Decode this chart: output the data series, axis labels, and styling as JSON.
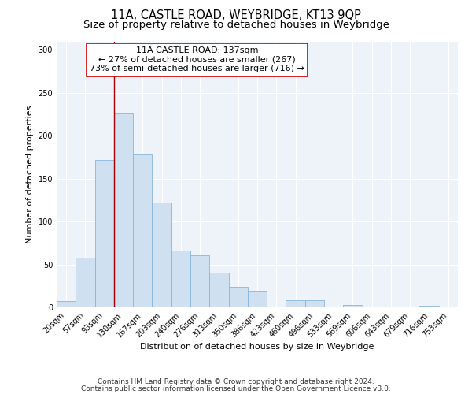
{
  "title": "11A, CASTLE ROAD, WEYBRIDGE, KT13 9QP",
  "subtitle": "Size of property relative to detached houses in Weybridge",
  "xlabel": "Distribution of detached houses by size in Weybridge",
  "ylabel": "Number of detached properties",
  "bar_labels": [
    "20sqm",
    "57sqm",
    "93sqm",
    "130sqm",
    "167sqm",
    "203sqm",
    "240sqm",
    "276sqm",
    "313sqm",
    "350sqm",
    "386sqm",
    "423sqm",
    "460sqm",
    "496sqm",
    "533sqm",
    "569sqm",
    "606sqm",
    "643sqm",
    "679sqm",
    "716sqm",
    "753sqm"
  ],
  "bar_values": [
    7,
    58,
    172,
    226,
    178,
    122,
    66,
    61,
    40,
    24,
    19,
    0,
    8,
    8,
    0,
    3,
    0,
    0,
    0,
    2,
    1
  ],
  "bar_color": "#cfe0f0",
  "bar_edge_color": "#8ab4d8",
  "bar_width": 1.0,
  "vline_x": 3.0,
  "vline_color": "#aa0000",
  "ylim": [
    0,
    310
  ],
  "yticks": [
    0,
    50,
    100,
    150,
    200,
    250,
    300
  ],
  "annotation_text_line1": "11A CASTLE ROAD: 137sqm",
  "annotation_text_line2": "← 27% of detached houses are smaller (267)",
  "annotation_text_line3": "73% of semi-detached houses are larger (716) →",
  "footnote1": "Contains HM Land Registry data © Crown copyright and database right 2024.",
  "footnote2": "Contains public sector information licensed under the Open Government Licence v3.0.",
  "fig_bg_color": "#ffffff",
  "plot_bg_color": "#eef3fa",
  "grid_color": "#ffffff",
  "title_fontsize": 10.5,
  "subtitle_fontsize": 9.5,
  "label_fontsize": 8,
  "tick_fontsize": 7,
  "annotation_fontsize": 8,
  "footnote_fontsize": 6.5
}
